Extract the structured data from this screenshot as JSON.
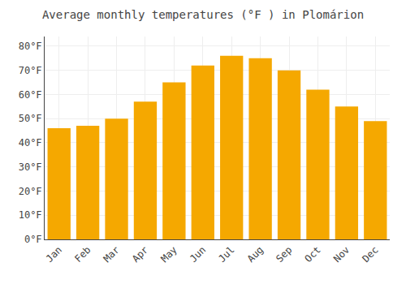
{
  "chart_data": {
    "type": "bar",
    "title": "Average monthly temperatures (°F ) in Plomárion",
    "categories": [
      "Jan",
      "Feb",
      "Mar",
      "Apr",
      "May",
      "Jun",
      "Jul",
      "Aug",
      "Sep",
      "Oct",
      "Nov",
      "Dec"
    ],
    "values": [
      46,
      47,
      50,
      57,
      65,
      72,
      76,
      75,
      70,
      62,
      55,
      49
    ],
    "color": "#F5A800",
    "ylim": [
      0,
      84
    ],
    "yticks": [
      {
        "value": 0,
        "label": "0°F"
      },
      {
        "value": 10,
        "label": "10°F"
      },
      {
        "value": 20,
        "label": "20°F"
      },
      {
        "value": 30,
        "label": "30°F"
      },
      {
        "value": 40,
        "label": "40°F"
      },
      {
        "value": 50,
        "label": "50°F"
      },
      {
        "value": 60,
        "label": "60°F"
      },
      {
        "value": 70,
        "label": "70°F"
      },
      {
        "value": 80,
        "label": "80°F"
      }
    ],
    "grid": true
  }
}
